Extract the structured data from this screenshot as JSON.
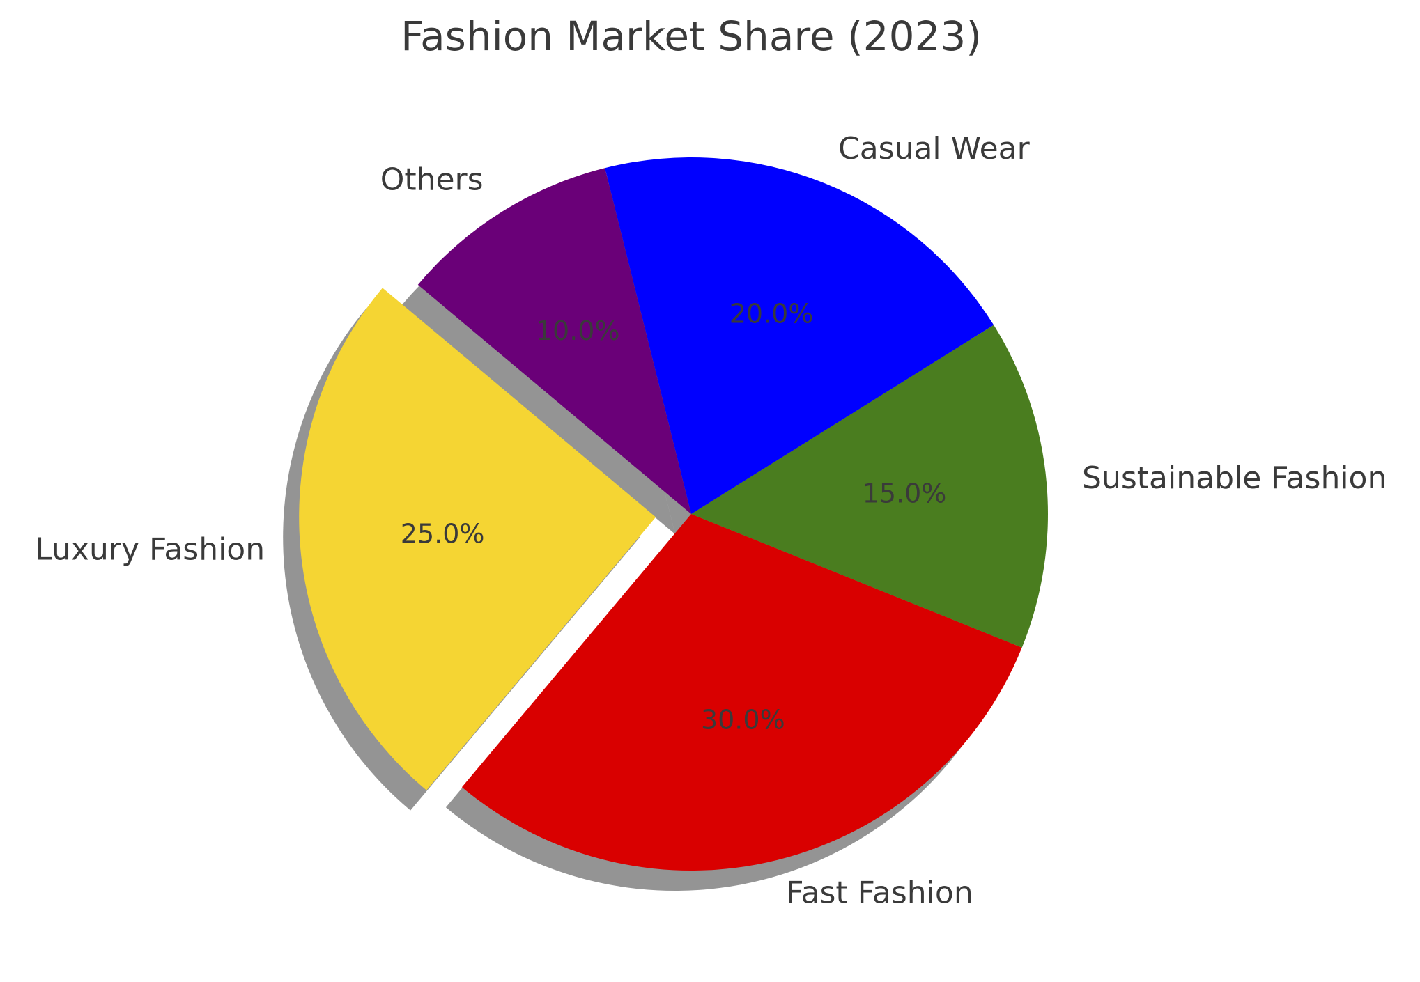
{
  "chart_data": {
    "type": "pie",
    "title": "Fashion Market Share (2023)",
    "categories": [
      "Luxury Fashion",
      "Fast Fashion",
      "Sustainable Fashion",
      "Casual Wear",
      "Others"
    ],
    "values": [
      25.0,
      30.0,
      15.0,
      20.0,
      10.0
    ],
    "percent_labels": [
      "25.0%",
      "30.0%",
      "15.0%",
      "20.0%",
      "10.0%"
    ],
    "colors": [
      "#f5d533",
      "#d90000",
      "#4a7d1f",
      "#0000ff",
      "#6a0078"
    ],
    "exploded": [
      "Luxury Fashion"
    ],
    "start_angle_deg": 140,
    "shadow": true,
    "legend": "none"
  }
}
